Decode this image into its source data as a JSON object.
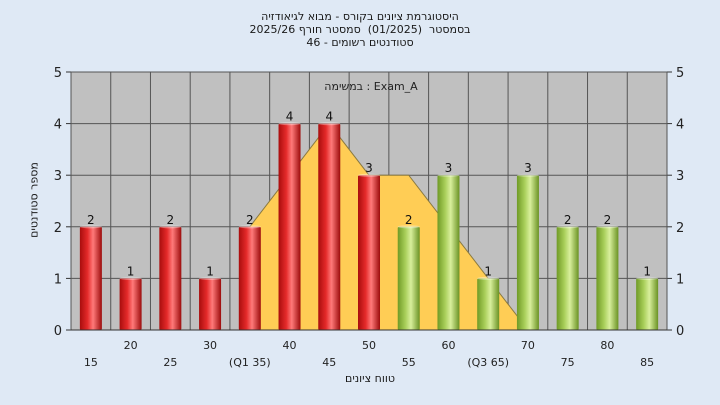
{
  "chart_data": {
    "type": "bar",
    "title_lines": [
      "היסטוגרמת ציונים בקורס - מבוא לגיאודזיה",
      "בסמסטר  (01/2025)  סמסטר חורף 2025/26",
      "סטודנטים רשומים - 46"
    ],
    "annotation": "במשימה : Exam_A",
    "ylabel": "מספר סטודנטים",
    "xlabel": "טווח ציונים",
    "ylim": [
      0,
      5
    ],
    "yticks": [
      0,
      1,
      2,
      3,
      4,
      5
    ],
    "grid": true,
    "categories": [
      "15",
      "20",
      "25",
      "30",
      "(Q1 35)",
      "40",
      "45",
      "50",
      "55",
      "60",
      "(Q3 65)",
      "70",
      "75",
      "80",
      "85"
    ],
    "values": [
      2,
      1,
      2,
      1,
      2,
      4,
      4,
      3,
      2,
      3,
      1,
      3,
      2,
      2,
      1
    ],
    "bar_groups": [
      "red",
      "red",
      "red",
      "red",
      "red",
      "red",
      "red",
      "red",
      "green",
      "green",
      "green",
      "green",
      "green",
      "green",
      "green"
    ],
    "band": {
      "x": [
        "(Q1 35)",
        "45",
        "50",
        "55",
        "60",
        "70"
      ],
      "y": [
        2,
        4,
        3,
        3,
        2,
        0
      ]
    },
    "colors": {
      "plot_background": "#c0c0c0",
      "page_background": "#dfe9f5",
      "red": "#e52a2a",
      "green": "#a9cf5a",
      "band": "#ffcd55"
    }
  }
}
